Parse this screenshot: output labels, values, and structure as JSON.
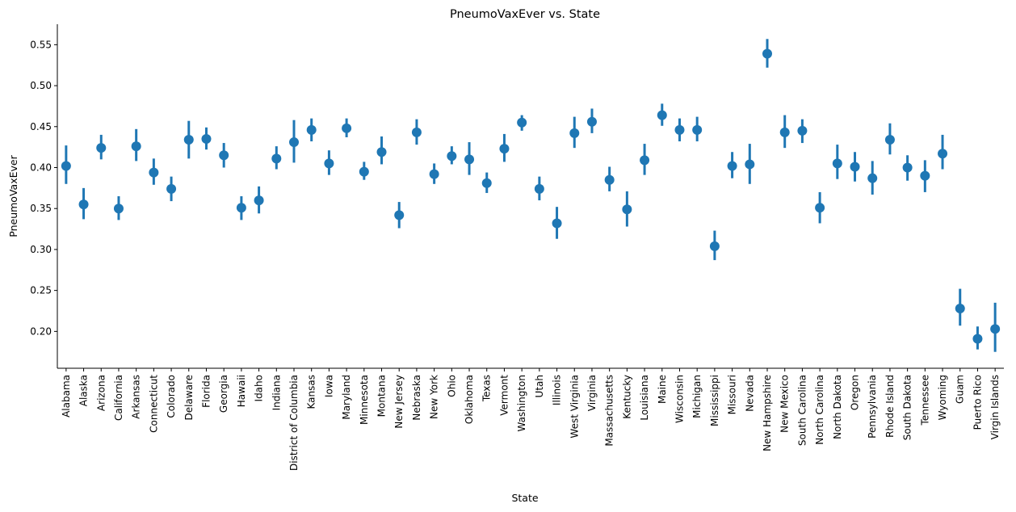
{
  "colors": {
    "series": "#1f77b4",
    "axis": "#000000",
    "background": "#ffffff"
  },
  "chart_data": {
    "type": "scatter",
    "title": "PneumoVaxEver vs. State",
    "xlabel": "State",
    "ylabel": "PneumoVaxEver",
    "ylim": [
      0.155,
      0.575
    ],
    "yticks": [
      "0.20",
      "0.25",
      "0.30",
      "0.35",
      "0.40",
      "0.45",
      "0.50",
      "0.55"
    ],
    "grid": false,
    "legend": "none",
    "categories": [
      "Alabama",
      "Alaska",
      "Arizona",
      "California",
      "Arkansas",
      "Connecticut",
      "Colorado",
      "Delaware",
      "Florida",
      "Georgia",
      "Hawaii",
      "Idaho",
      "Indiana",
      "District of Columbia",
      "Kansas",
      "Iowa",
      "Maryland",
      "Minnesota",
      "Montana",
      "New Jersey",
      "Nebraska",
      "New York",
      "Ohio",
      "Oklahoma",
      "Texas",
      "Vermont",
      "Washington",
      "Utah",
      "Illinois",
      "West Virginia",
      "Virginia",
      "Massachusetts",
      "Kentucky",
      "Louisiana",
      "Maine",
      "Wisconsin",
      "Michigan",
      "Mississippi",
      "Missouri",
      "Nevada",
      "New Hampshire",
      "New Mexico",
      "South Carolina",
      "North Carolina",
      "North Dakota",
      "Oregon",
      "Pennsylvania",
      "Rhode Island",
      "South Dakota",
      "Tennessee",
      "Wyoming",
      "Guam",
      "Puerto Rico",
      "Virgin Islands"
    ],
    "values": [
      0.402,
      0.355,
      0.424,
      0.35,
      0.426,
      0.394,
      0.374,
      0.434,
      0.435,
      0.415,
      0.351,
      0.36,
      0.411,
      0.431,
      0.446,
      0.405,
      0.448,
      0.395,
      0.419,
      0.342,
      0.443,
      0.392,
      0.414,
      0.41,
      0.381,
      0.423,
      0.455,
      0.374,
      0.332,
      0.442,
      0.456,
      0.385,
      0.349,
      0.409,
      0.464,
      0.446,
      0.446,
      0.304,
      0.402,
      0.404,
      0.539,
      0.443,
      0.445,
      0.351,
      0.405,
      0.401,
      0.387,
      0.434,
      0.4,
      0.39,
      0.417,
      0.228,
      0.191,
      0.203
    ],
    "ci_low": [
      0.38,
      0.337,
      0.41,
      0.336,
      0.408,
      0.379,
      0.359,
      0.411,
      0.422,
      0.4,
      0.336,
      0.344,
      0.398,
      0.406,
      0.432,
      0.391,
      0.437,
      0.385,
      0.404,
      0.326,
      0.428,
      0.38,
      0.404,
      0.391,
      0.369,
      0.407,
      0.445,
      0.36,
      0.313,
      0.424,
      0.442,
      0.371,
      0.328,
      0.391,
      0.451,
      0.432,
      0.432,
      0.287,
      0.387,
      0.38,
      0.522,
      0.424,
      0.43,
      0.332,
      0.386,
      0.383,
      0.367,
      0.416,
      0.384,
      0.37,
      0.398,
      0.207,
      0.178,
      0.175
    ],
    "ci_high": [
      0.427,
      0.375,
      0.44,
      0.365,
      0.447,
      0.411,
      0.389,
      0.457,
      0.449,
      0.43,
      0.365,
      0.377,
      0.426,
      0.458,
      0.46,
      0.421,
      0.46,
      0.407,
      0.438,
      0.358,
      0.459,
      0.405,
      0.426,
      0.431,
      0.394,
      0.441,
      0.464,
      0.389,
      0.352,
      0.462,
      0.472,
      0.401,
      0.371,
      0.429,
      0.478,
      0.46,
      0.462,
      0.323,
      0.419,
      0.429,
      0.557,
      0.464,
      0.459,
      0.37,
      0.428,
      0.419,
      0.408,
      0.454,
      0.415,
      0.409,
      0.44,
      0.252,
      0.206,
      0.235
    ]
  }
}
